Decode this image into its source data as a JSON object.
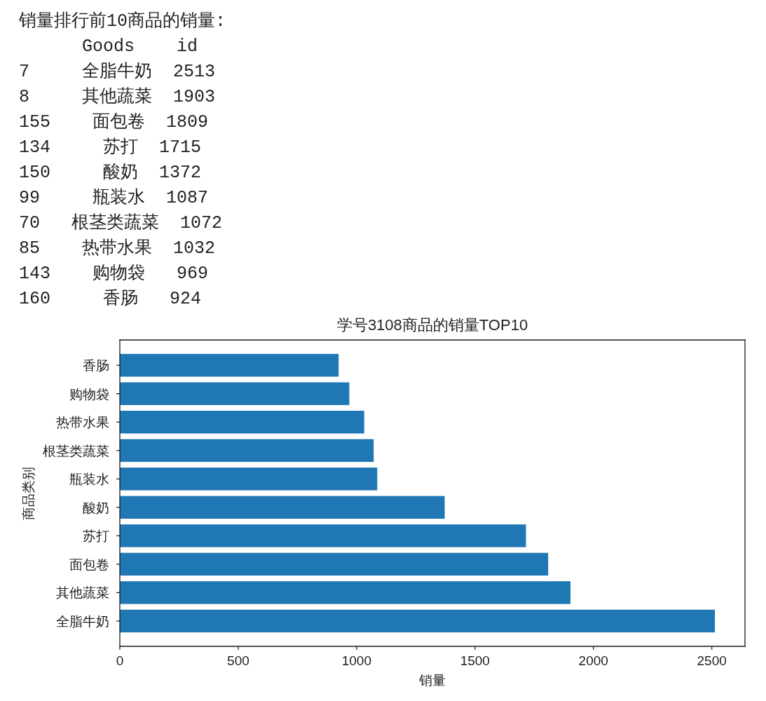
{
  "chart_data": {
    "type": "bar",
    "orientation": "horizontal",
    "title": "学号3108商品的销量TOP10",
    "xlabel": "销量",
    "ylabel": "商品类别",
    "categories": [
      "香肠",
      "购物袋",
      "热带水果",
      "根茎类蔬菜",
      "瓶装水",
      "酸奶",
      "苏打",
      "面包卷",
      "其他蔬菜",
      "全脂牛奶"
    ],
    "values": [
      924,
      969,
      1032,
      1072,
      1087,
      1372,
      1715,
      1809,
      1903,
      2513
    ],
    "color": "#1f77b4",
    "xlim": [
      0,
      2640
    ],
    "xticks": [
      0,
      500,
      1000,
      1500,
      2000,
      2500
    ],
    "annotations": [
      "销量排行前10商品的销量:",
      "      Goods    id",
      "7     全脂牛奶  2513",
      "8     其他蔬菜  1903",
      "155    面包卷  1809",
      "134     苏打  1715",
      "150     酸奶  1372",
      "99     瓶装水  1087",
      "70   根茎类蔬菜  1072",
      "85    热带水果  1032",
      "143    购物袋   969",
      "160     香肠   924"
    ]
  }
}
